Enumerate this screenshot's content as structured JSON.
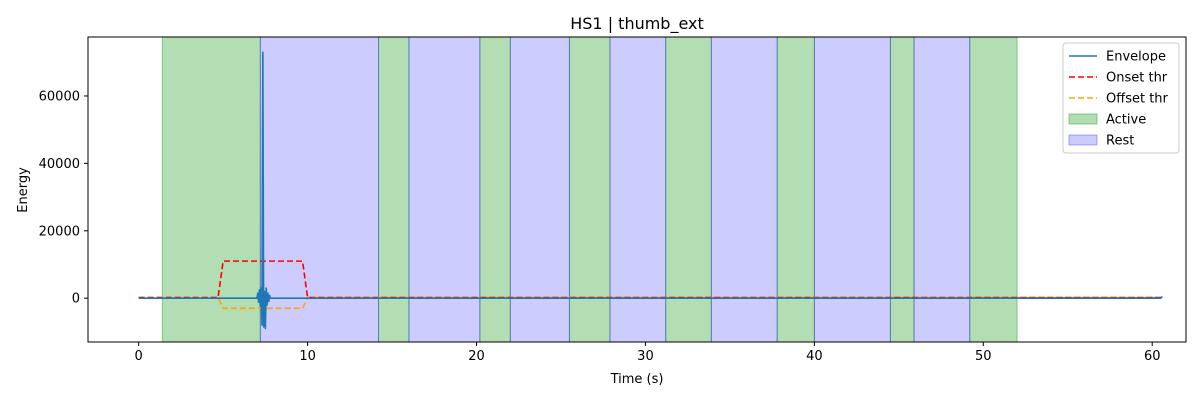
{
  "chart_data": {
    "type": "line",
    "title": "HS1 | thumb_ext",
    "xlabel": "Time (s)",
    "ylabel": "Energy",
    "xlim": [
      -3,
      62
    ],
    "ylim": [
      -13000,
      77500
    ],
    "xticks": [
      0,
      10,
      20,
      30,
      40,
      50,
      60
    ],
    "yticks": [
      0,
      20000,
      40000,
      60000
    ],
    "legend_position": "top-right",
    "grid": false,
    "colors": {
      "envelope": "#1f77b4",
      "onset": "#ff0000",
      "offset": "#ffa500",
      "active_fill": "#2ca02c",
      "rest_fill": "#0000ff"
    },
    "legend": [
      {
        "key": "envelope",
        "label": "Envelope",
        "kind": "line"
      },
      {
        "key": "onset",
        "label": "Onset thr",
        "kind": "dashed"
      },
      {
        "key": "offset",
        "label": "Offset thr",
        "kind": "dashed"
      },
      {
        "key": "active",
        "label": "Active",
        "kind": "patch"
      },
      {
        "key": "rest",
        "label": "Rest",
        "kind": "patch"
      }
    ],
    "active_spans": [
      [
        1.4,
        7.2
      ],
      [
        14.2,
        16.0
      ],
      [
        20.2,
        22.0
      ],
      [
        25.5,
        27.9
      ],
      [
        31.2,
        33.9
      ],
      [
        37.8,
        40.0
      ],
      [
        44.5,
        45.9
      ],
      [
        49.2,
        52.0
      ]
    ],
    "rest_spans": [
      [
        7.2,
        14.2
      ],
      [
        16.0,
        20.2
      ],
      [
        22.0,
        25.5
      ],
      [
        27.9,
        31.2
      ],
      [
        33.9,
        37.8
      ],
      [
        40.0,
        44.5
      ],
      [
        45.9,
        49.2
      ]
    ],
    "series": [
      {
        "name": "Envelope",
        "key": "envelope",
        "x": [
          0,
          7.0,
          7.05,
          7.1,
          7.15,
          7.2,
          7.25,
          7.3,
          7.35,
          7.4,
          7.45,
          7.5,
          7.55,
          7.6,
          7.65,
          7.7,
          7.75,
          7.8,
          7.9,
          8.0,
          60.5,
          60.6
        ],
        "y": [
          0,
          0,
          1500,
          -1200,
          2500,
          -2500,
          3000,
          -8000,
          73000,
          -8500,
          2000,
          -9000,
          3000,
          -2000,
          1500,
          -1000,
          800,
          0,
          0,
          0,
          0,
          500
        ]
      },
      {
        "name": "Onset thr",
        "key": "onset",
        "x": [
          0,
          4.7,
          5.0,
          9.7,
          10.0,
          60.5
        ],
        "y": [
          200,
          200,
          11000,
          11000,
          200,
          200
        ]
      },
      {
        "name": "Offset thr",
        "key": "offset",
        "x": [
          0,
          4.7,
          5.0,
          9.7,
          10.0,
          60.5
        ],
        "y": [
          200,
          200,
          -3000,
          -3000,
          200,
          200
        ]
      }
    ]
  }
}
